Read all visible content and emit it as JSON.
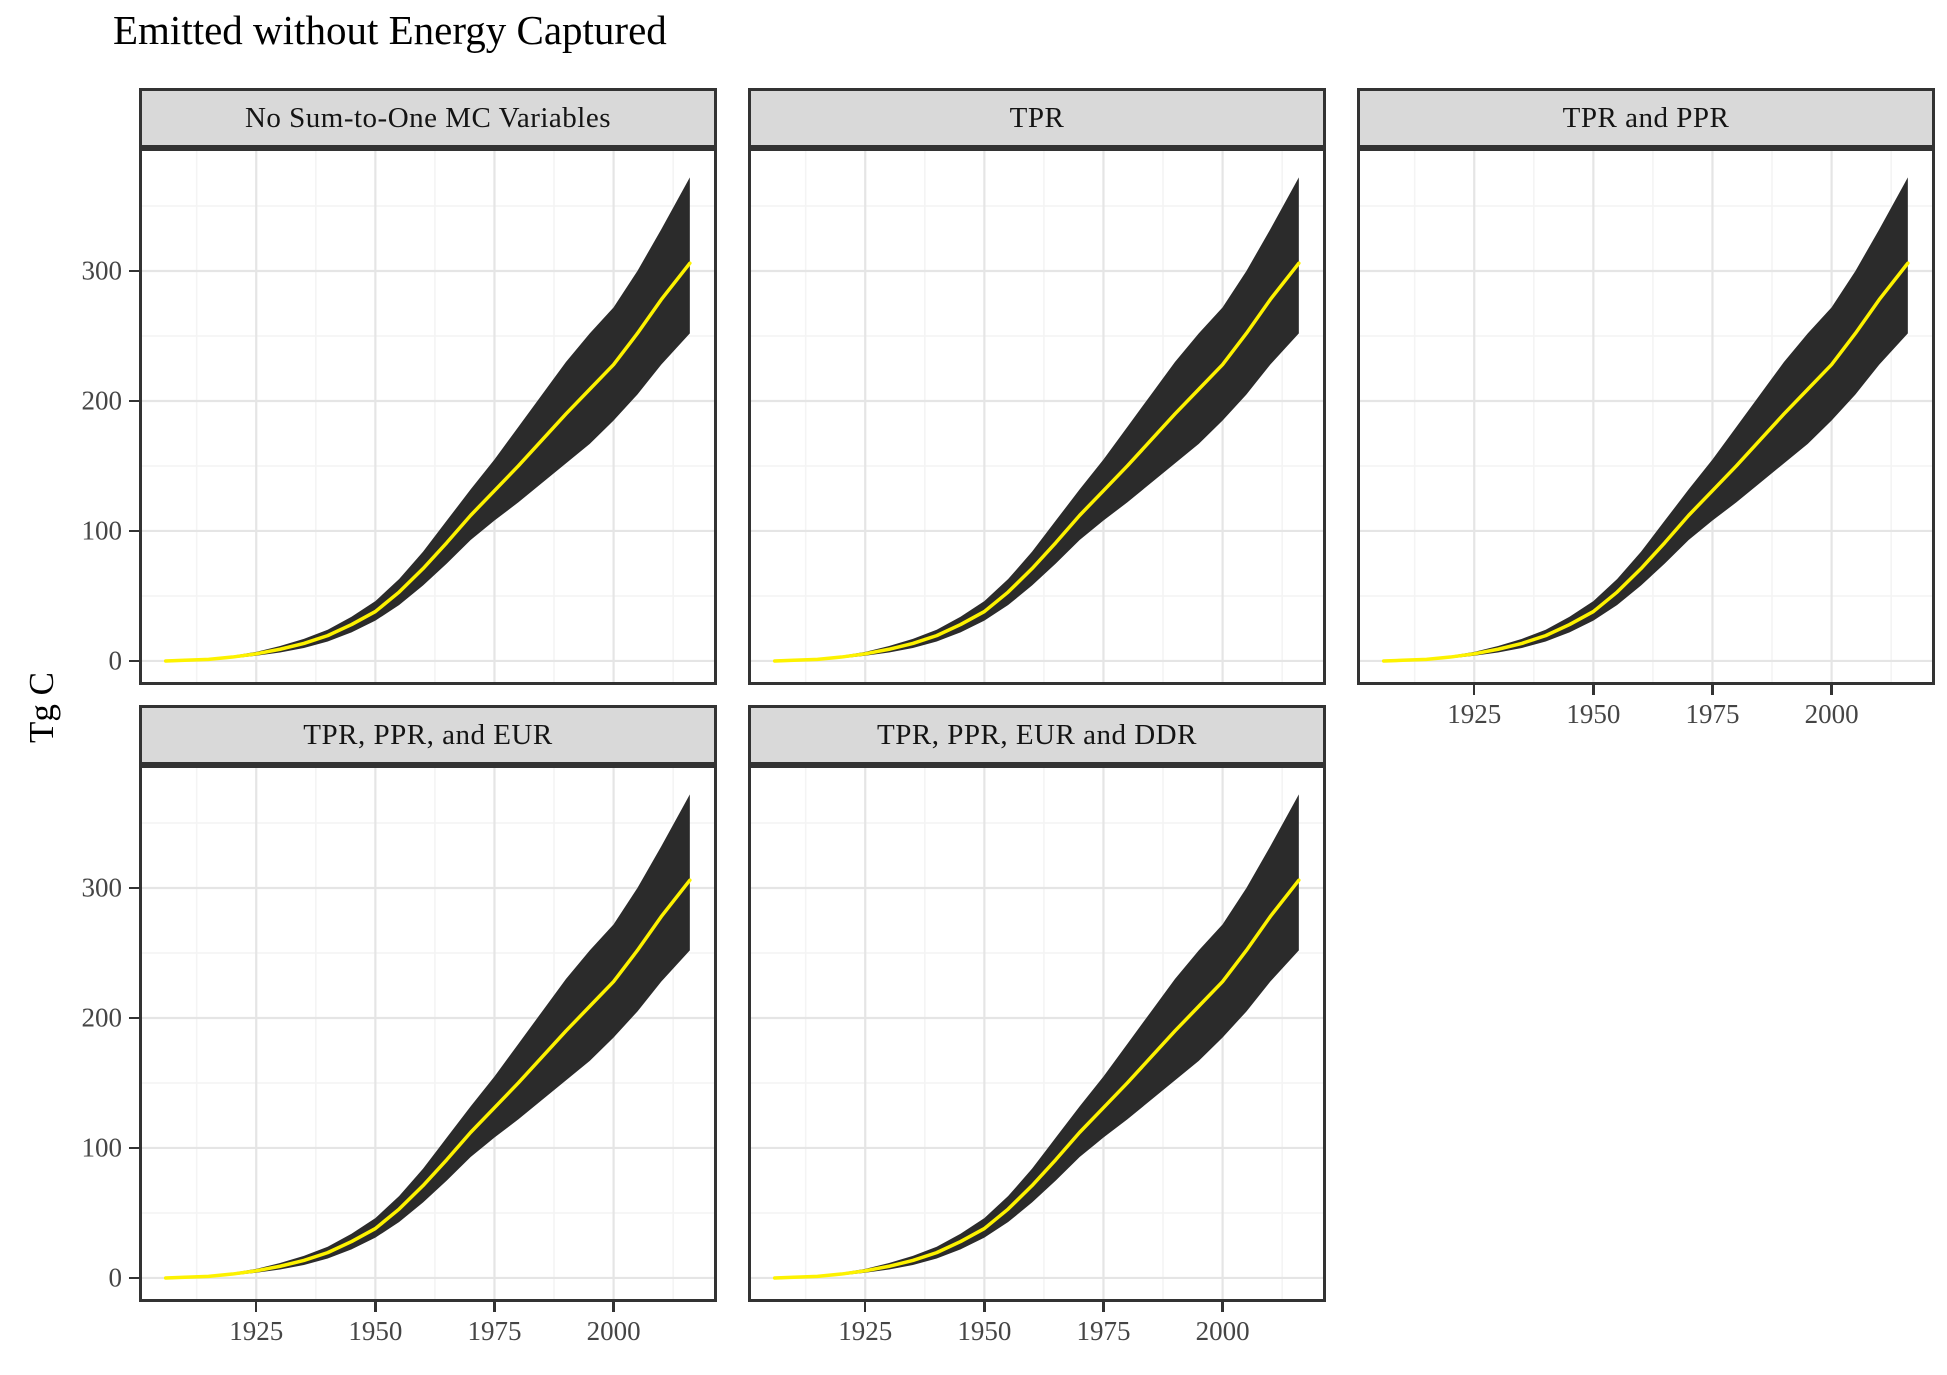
{
  "chart_data": {
    "type": "area",
    "title": "Emitted without Energy Captured",
    "ylabel": "Tg C",
    "xlabel": "",
    "grid": "on",
    "legend": "none",
    "xlim": [
      1900.4,
      2021.7
    ],
    "ylim": [
      -18.5,
      394.6
    ],
    "x_ticks": [
      1925,
      1950,
      1975,
      2000
    ],
    "x_minor_ticks": [
      1912.5,
      1937.5,
      1962.5,
      1987.5,
      2012.5
    ],
    "y_ticks": [
      0,
      100,
      200,
      300
    ],
    "y_minor_ticks": [
      50,
      150,
      250,
      350
    ],
    "facets": [
      {
        "label": "No Sum-to-One MC Variables"
      },
      {
        "label": "TPR"
      },
      {
        "label": "TPR and PPR"
      },
      {
        "label": "TPR, PPR, and EUR"
      },
      {
        "label": "TPR, PPR, EUR and DDR"
      }
    ],
    "all_facets_show_same_series": true,
    "x": [
      1906,
      1910,
      1915,
      1920,
      1925,
      1930,
      1935,
      1940,
      1945,
      1950,
      1955,
      1960,
      1965,
      1970,
      1975,
      1980,
      1985,
      1990,
      1995,
      2000,
      2005,
      2010,
      2016
    ],
    "series": [
      {
        "name": "median",
        "values": [
          0,
          0.5,
          1.2,
          3,
          5.5,
          9,
          13.5,
          19.5,
          28,
          38,
          53,
          71,
          91,
          112,
          131,
          150,
          170,
          190,
          209,
          228,
          252,
          278,
          306
        ]
      },
      {
        "name": "lower_bound",
        "values": [
          0,
          0.4,
          0.9,
          2,
          4,
          6.5,
          10,
          15,
          22,
          31,
          43,
          58,
          75,
          93,
          108,
          122,
          137,
          152,
          167,
          185,
          205,
          228,
          252
        ]
      },
      {
        "name": "upper_bound",
        "values": [
          0,
          0.6,
          1.5,
          4,
          7,
          11.5,
          17,
          24,
          34,
          46,
          63,
          84,
          108,
          132,
          155,
          180,
          205,
          230,
          252,
          272,
          300,
          332,
          372
        ]
      }
    ]
  },
  "colors": {
    "ribbon": "#2b2b2b",
    "median_line": "#fdf200",
    "strip_fill": "#d9d9d9",
    "panel_border": "#333333",
    "grid_major": "#e5e5e5",
    "grid_minor": "#f4f4f4",
    "tick_mark": "#333333",
    "tick_label": "#454545",
    "title_text": "#000000"
  }
}
